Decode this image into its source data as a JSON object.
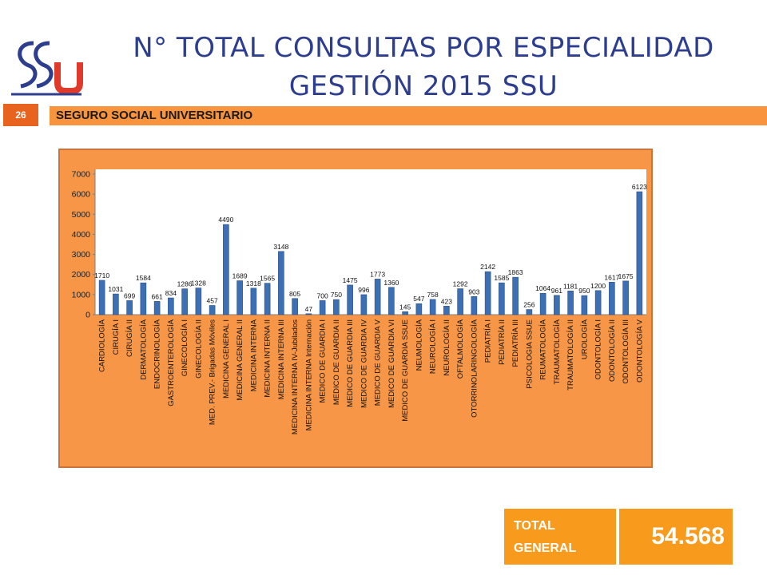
{
  "header": {
    "title_line1": "N° TOTAL CONSULTAS POR ESPECIALIDAD",
    "title_line2": "GESTIÓN 2015 SSU",
    "logo_text": "SSU"
  },
  "band": {
    "page_number": "26",
    "subtitle": "SEGURO SOCIAL UNIVERSITARIO"
  },
  "total": {
    "label_line1": "TOTAL",
    "label_line2": "GENERAL",
    "value": "54.568"
  },
  "colors": {
    "title": "#2e3e8e",
    "band": "#f7943d",
    "chart_bg": "#f79646",
    "bar": "#3d6fb4",
    "total_bg": "#f89a1c"
  },
  "chart_data": {
    "type": "bar",
    "ylim": [
      0,
      7000
    ],
    "yticks": [
      0,
      1000,
      2000,
      3000,
      4000,
      5000,
      6000,
      7000
    ],
    "grid": false,
    "categories": [
      "CARDIOLOGÍA",
      "CIRUGÍA I",
      "CIRUGÍA II",
      "DERMATOLOGÍA",
      "ENDOCRINOLOGÍA",
      "GASTROENTEROLOGÍA",
      "GINECOLOGÍA I",
      "GINECOLOGÍA II",
      "MED. PREV.- Brigadas Móviles",
      "MEDICINA GENERAL I",
      "MEDICINA GENERAL II",
      "MEDICINA INTERNA",
      "MEDICINA INTERNA II",
      "MEDICINA INTERNA III",
      "MEDICINA INTERNA IV-Jubilados",
      "MEDICINA INTERNA Internación",
      "MEDICO DE GUARDIA I",
      "MEDICO DE GUARDIA II",
      "MEDICO DE GUARDIA III",
      "MEDICO DE GUARDIA IV",
      "MEDICO DE GUARDIA V",
      "MEDICO DE GUARDIA VI",
      "MEDICO DE GUARDIA SSUE",
      "NEUMOLOGÍA",
      "NEUROLOGÍA I",
      "NEUROLOGÍA II",
      "OFTALMOLOGÍA",
      "OTORRINOLARINGOLOGÍA",
      "PEDIATRÍA I",
      "PEDIATRÍA II",
      "PEDIATRÍA III",
      "PSICOLOGIA SSUE",
      "REUMATOLOGÍA",
      "TRAUMATOLOGÍA",
      "TRAUMATOLOGÍA II",
      "UROLOGÍA",
      "ODONTOLOGÍA I",
      "ODONTOLOGÍA II",
      "ODONTOLOGÍA III",
      "ODONTOLOGÍA V"
    ],
    "values": [
      1710,
      1031,
      699,
      1584,
      661,
      834,
      1286,
      1328,
      457,
      4490,
      1689,
      1318,
      1565,
      3148,
      805,
      47,
      700,
      750,
      1475,
      996,
      1773,
      1360,
      145,
      547,
      758,
      423,
      1292,
      903,
      2142,
      1585,
      1863,
      256,
      1064,
      961,
      1181,
      950,
      1200,
      1617,
      1675,
      6123
    ]
  }
}
